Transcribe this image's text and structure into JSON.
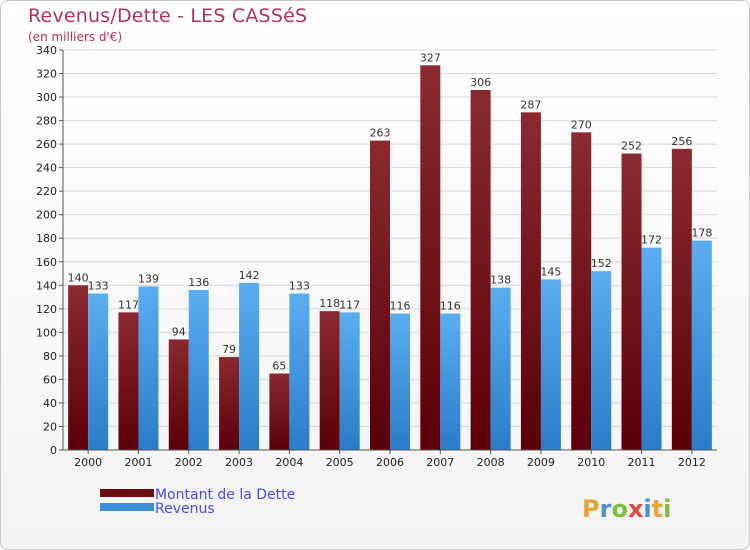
{
  "title": "Revenus/Dette - LES CASSéS",
  "subtitle": "(en milliers d'€)",
  "logo": {
    "text": "Proxiti"
  },
  "colors": {
    "dette": "#6b0f14",
    "revenus": "#3a8fd8",
    "title": "#b03060",
    "legend_text": "#4a4ae8"
  },
  "chart_data": {
    "type": "bar",
    "categories": [
      "2000",
      "2001",
      "2002",
      "2003",
      "2004",
      "2005",
      "2006",
      "2007",
      "2008",
      "2009",
      "2010",
      "2011",
      "2012"
    ],
    "series": [
      {
        "name": "Montant de la Dette",
        "values": [
          140,
          117,
          94,
          79,
          65,
          118,
          263,
          327,
          306,
          287,
          270,
          252,
          256
        ]
      },
      {
        "name": "Revenus",
        "values": [
          133,
          139,
          136,
          142,
          133,
          117,
          116,
          116,
          138,
          145,
          152,
          172,
          178
        ]
      }
    ],
    "ylim": [
      0,
      340
    ],
    "yticks": [
      0,
      20,
      40,
      60,
      80,
      100,
      120,
      140,
      160,
      180,
      200,
      220,
      240,
      260,
      280,
      300,
      320,
      340
    ],
    "grid": true,
    "legend_position": "bottom-left"
  }
}
